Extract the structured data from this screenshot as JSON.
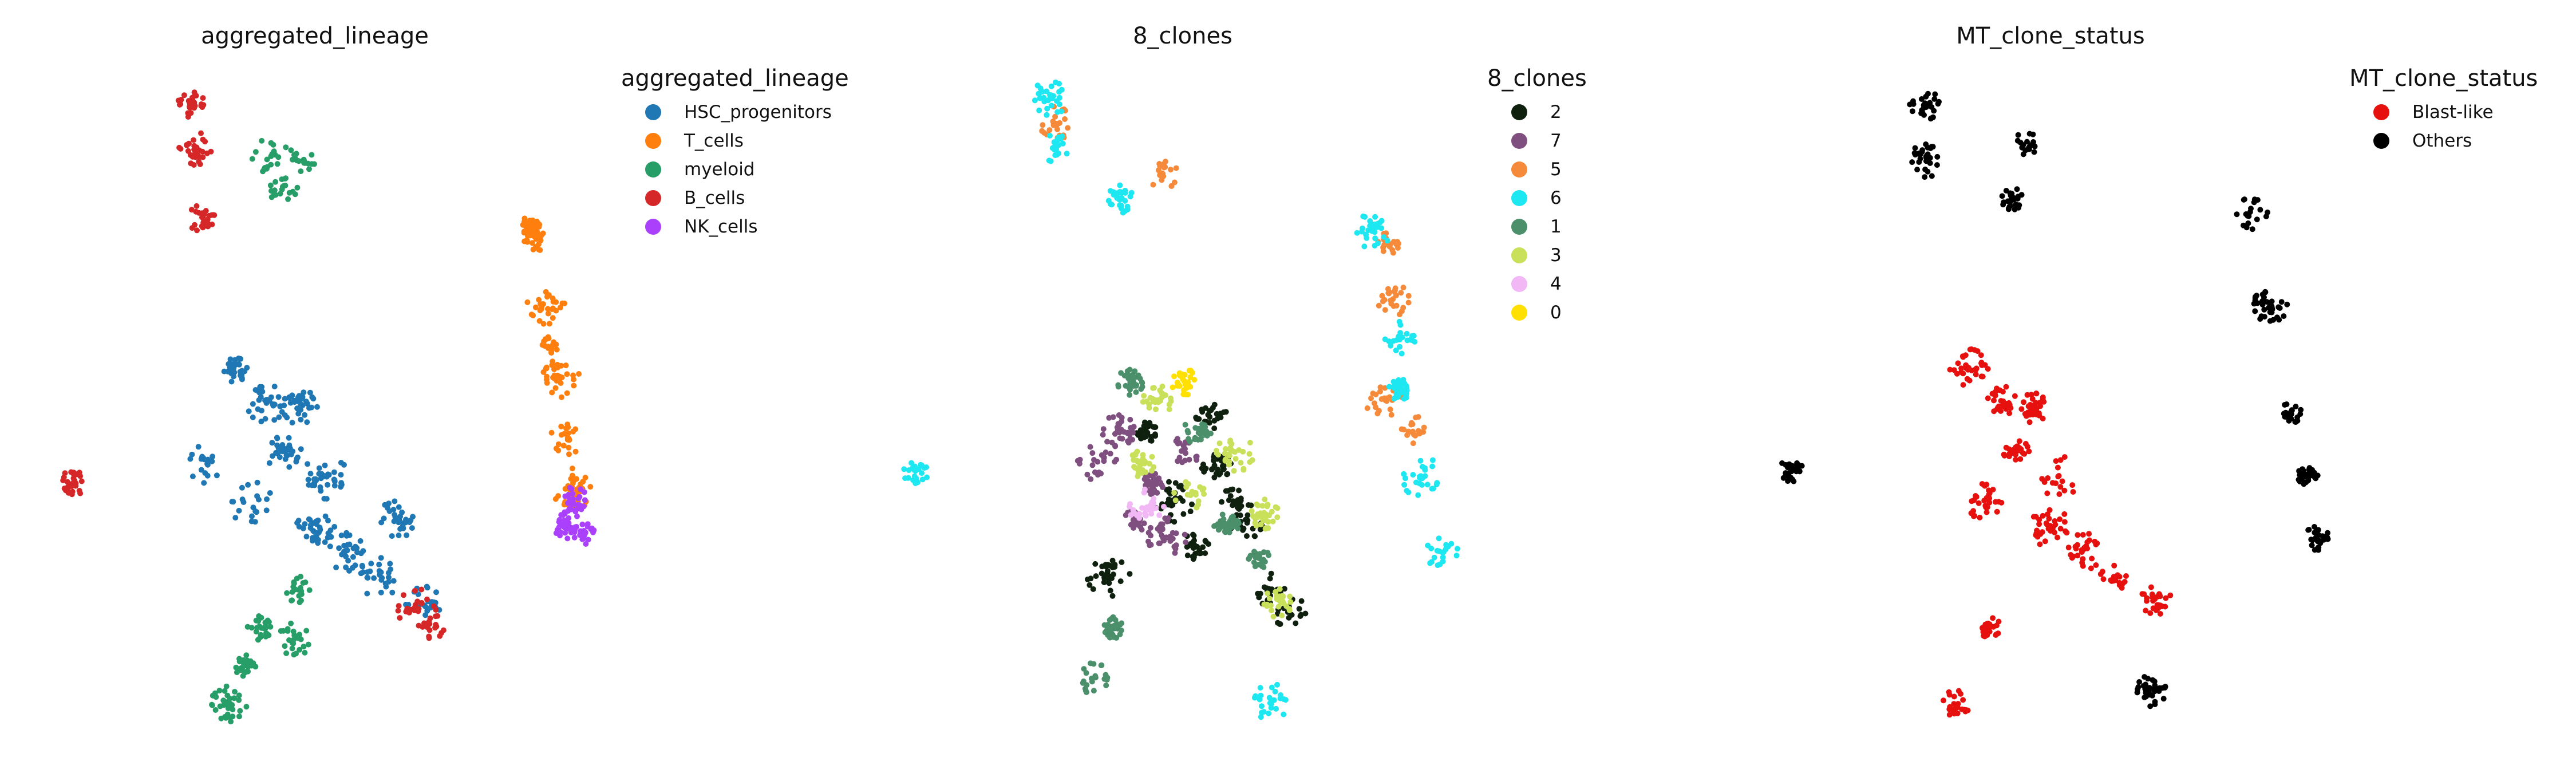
{
  "chart_data": [
    {
      "type": "scatter",
      "title": "aggregated_lineage",
      "legend_title": "aggregated_lineage",
      "legend_placement": "right",
      "xlabel": "",
      "ylabel": "",
      "axes_visible": false,
      "grid": false,
      "categories": [
        "HSC_progenitors",
        "T_cells",
        "myeloid",
        "B_cells",
        "NK_cells"
      ],
      "colors": [
        "#1f77b4",
        "#ff7f0e",
        "#279e68",
        "#d62728",
        "#aa40fc"
      ],
      "series": [
        {
          "name": "HSC_progenitors",
          "points": [
            [
              0.35,
              0.45
            ],
            [
              0.41,
              0.5
            ],
            [
              0.47,
              0.51
            ],
            [
              0.44,
              0.58
            ],
            [
              0.52,
              0.62
            ],
            [
              0.38,
              0.66
            ],
            [
              0.5,
              0.7
            ],
            [
              0.56,
              0.74
            ],
            [
              0.62,
              0.78
            ],
            [
              0.3,
              0.6
            ],
            [
              0.65,
              0.69
            ],
            [
              0.7,
              0.82
            ]
          ]
        },
        {
          "name": "T_cells",
          "points": [
            [
              0.91,
              0.24
            ],
            [
              0.93,
              0.35
            ],
            [
              0.95,
              0.46
            ],
            [
              0.97,
              0.56
            ],
            [
              0.98,
              0.64
            ],
            [
              0.9,
              0.22
            ],
            [
              0.94,
              0.41
            ]
          ]
        },
        {
          "name": "myeloid",
          "points": [
            [
              0.42,
              0.11
            ],
            [
              0.44,
              0.16
            ],
            [
              0.48,
              0.12
            ],
            [
              0.37,
              0.92
            ],
            [
              0.4,
              0.86
            ],
            [
              0.46,
              0.88
            ],
            [
              0.34,
              0.98
            ],
            [
              0.47,
              0.8
            ]
          ]
        },
        {
          "name": "B_cells",
          "points": [
            [
              0.27,
              0.03
            ],
            [
              0.28,
              0.1
            ],
            [
              0.29,
              0.21
            ],
            [
              0.69,
              0.83
            ],
            [
              0.72,
              0.86
            ],
            [
              0.05,
              0.63
            ]
          ]
        },
        {
          "name": "NK_cells",
          "points": [
            [
              0.98,
              0.66
            ],
            [
              1.0,
              0.71
            ],
            [
              0.97,
              0.7
            ]
          ]
        }
      ]
    },
    {
      "type": "scatter",
      "title": "8_clones",
      "legend_title": "8_clones",
      "legend_placement": "right",
      "xlabel": "",
      "ylabel": "",
      "axes_visible": false,
      "grid": false,
      "categories": [
        "2",
        "7",
        "5",
        "6",
        "1",
        "3",
        "4",
        "0"
      ],
      "colors": [
        "#0f200f",
        "#7f4f7f",
        "#f58a3a",
        "#1de7f0",
        "#4b8f6b",
        "#c8e05a",
        "#f2b8f6",
        "#ffe000"
      ],
      "series": [
        {
          "name": "2",
          "points": [
            [
              0.45,
              0.55
            ],
            [
              0.58,
              0.6
            ],
            [
              0.64,
              0.7
            ],
            [
              0.68,
              0.8
            ],
            [
              0.38,
              0.78
            ],
            [
              0.5,
              0.66
            ],
            [
              0.72,
              0.84
            ],
            [
              0.57,
              0.52
            ],
            [
              0.54,
              0.73
            ],
            [
              0.62,
              0.66
            ]
          ]
        },
        {
          "name": "7",
          "points": [
            [
              0.4,
              0.55
            ],
            [
              0.46,
              0.63
            ],
            [
              0.52,
              0.58
            ],
            [
              0.49,
              0.72
            ],
            [
              0.43,
              0.69
            ],
            [
              0.36,
              0.6
            ]
          ]
        },
        {
          "name": "5",
          "points": [
            [
              0.28,
              0.06
            ],
            [
              0.48,
              0.14
            ],
            [
              0.91,
              0.34
            ],
            [
              0.95,
              0.55
            ],
            [
              0.89,
              0.5
            ],
            [
              0.9,
              0.25
            ]
          ]
        },
        {
          "name": "6",
          "points": [
            [
              0.27,
              0.02
            ],
            [
              0.28,
              0.1
            ],
            [
              0.4,
              0.18
            ],
            [
              0.87,
              0.23
            ],
            [
              0.92,
              0.4
            ],
            [
              0.96,
              0.62
            ],
            [
              1.0,
              0.74
            ],
            [
              0.92,
              0.48
            ],
            [
              0.02,
              0.61
            ],
            [
              0.68,
              0.98
            ]
          ]
        },
        {
          "name": "1",
          "points": [
            [
              0.42,
              0.47
            ],
            [
              0.55,
              0.55
            ],
            [
              0.6,
              0.7
            ],
            [
              0.35,
              0.94
            ],
            [
              0.39,
              0.86
            ],
            [
              0.66,
              0.75
            ]
          ]
        },
        {
          "name": "3",
          "points": [
            [
              0.47,
              0.5
            ],
            [
              0.53,
              0.65
            ],
            [
              0.61,
              0.58
            ],
            [
              0.67,
              0.68
            ],
            [
              0.44,
              0.6
            ],
            [
              0.7,
              0.82
            ]
          ]
        },
        {
          "name": "4",
          "points": [
            [
              0.45,
              0.67
            ]
          ]
        },
        {
          "name": "0",
          "points": [
            [
              0.52,
              0.47
            ]
          ]
        }
      ]
    },
    {
      "type": "scatter",
      "title": "MT_clone_status",
      "legend_title": "MT_clone_status",
      "legend_placement": "right",
      "xlabel": "",
      "ylabel": "",
      "axes_visible": false,
      "grid": false,
      "categories": [
        "Blast-like",
        "Others"
      ],
      "colors": [
        "#e6110e",
        "#000000"
      ],
      "series": [
        {
          "name": "Blast-like",
          "points": [
            [
              0.35,
              0.45
            ],
            [
              0.41,
              0.5
            ],
            [
              0.47,
              0.51
            ],
            [
              0.44,
              0.58
            ],
            [
              0.52,
              0.62
            ],
            [
              0.38,
              0.66
            ],
            [
              0.5,
              0.7
            ],
            [
              0.56,
              0.74
            ],
            [
              0.62,
              0.78
            ],
            [
              0.7,
              0.82
            ],
            [
              0.39,
              0.86
            ],
            [
              0.33,
              0.98
            ]
          ]
        },
        {
          "name": "Others",
          "points": [
            [
              0.27,
              0.03
            ],
            [
              0.27,
              0.12
            ],
            [
              0.43,
              0.18
            ],
            [
              0.46,
              0.09
            ],
            [
              0.88,
              0.2
            ],
            [
              0.91,
              0.35
            ],
            [
              0.95,
              0.52
            ],
            [
              0.98,
              0.62
            ],
            [
              1.0,
              0.72
            ],
            [
              0.02,
              0.61
            ],
            [
              0.69,
              0.96
            ]
          ]
        }
      ]
    }
  ]
}
